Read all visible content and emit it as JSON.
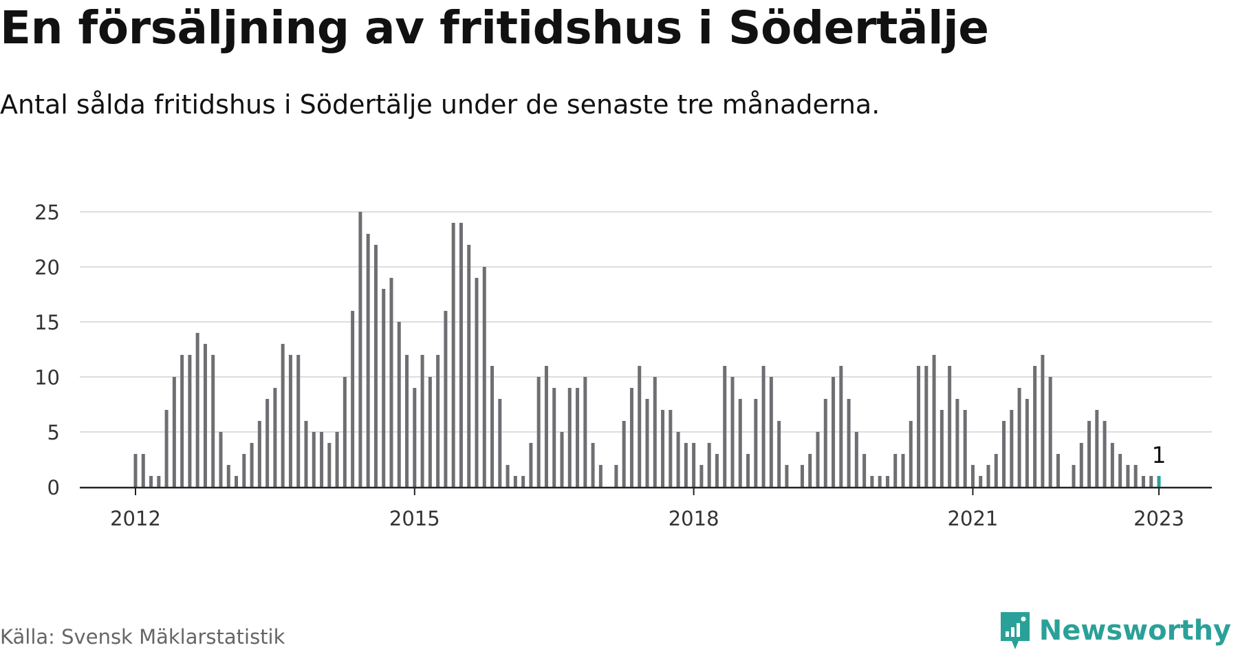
{
  "title": "En försäljning av fritidshus i Södertälje",
  "subtitle": "Antal sålda fritidshus i Södertälje under de senaste tre månaderna.",
  "source": "Källa: Svensk Mäklarstatistik",
  "brand": {
    "name": "Newsworthy",
    "icon": "newsworthy-logo-icon"
  },
  "colors": {
    "bar": "#6e6e73",
    "highlight": "#2aa198",
    "grid": "#dddddd",
    "axis": "#222222"
  },
  "chart_data": {
    "type": "bar",
    "title": "En försäljning av fritidshus i Södertälje",
    "subtitle": "Antal sålda fritidshus i Södertälje under de senaste tre månaderna.",
    "xlabel": "",
    "ylabel": "",
    "ylim": [
      0,
      25
    ],
    "y_ticks": [
      "0",
      "5",
      "10",
      "15",
      "20",
      "25"
    ],
    "x_ticks": [
      {
        "label": "2012",
        "date": "2012-01"
      },
      {
        "label": "2015",
        "date": "2015-01"
      },
      {
        "label": "2018",
        "date": "2018-01"
      },
      {
        "label": "2021",
        "date": "2021-01"
      },
      {
        "label": "2023",
        "date": "2023-01"
      }
    ],
    "grid": true,
    "start_month": "2011-01",
    "series": [
      {
        "values": [
          0,
          0,
          0,
          0,
          0,
          0,
          0,
          0,
          0,
          0,
          0,
          0,
          3,
          3,
          1,
          1,
          7,
          10,
          12,
          12,
          14,
          13,
          12,
          5,
          2,
          1,
          3,
          4,
          6,
          8,
          9,
          13,
          12,
          12,
          6,
          5,
          5,
          4,
          5,
          10,
          16,
          25,
          23,
          22,
          18,
          19,
          15,
          12,
          9,
          12,
          10,
          12,
          16,
          24,
          24,
          22,
          19,
          20,
          11,
          8,
          2,
          1,
          1,
          4,
          10,
          11,
          9,
          5,
          9,
          9,
          10,
          4,
          2,
          0,
          2,
          6,
          9,
          11,
          8,
          10,
          7,
          7,
          5,
          4,
          4,
          2,
          4,
          3,
          11,
          10,
          8,
          3,
          8,
          11,
          10,
          6,
          2,
          0,
          2,
          3,
          5,
          8,
          10,
          11,
          8,
          5,
          3,
          1,
          1,
          1,
          3,
          3,
          6,
          11,
          11,
          12,
          7,
          11,
          8,
          7,
          2,
          1,
          2,
          3,
          6,
          7,
          9,
          8,
          11,
          12,
          10,
          3,
          0,
          2,
          4,
          6,
          7,
          6,
          4,
          3,
          2,
          2,
          1,
          1
        ]
      }
    ],
    "highlight": {
      "date": "2023-01",
      "value": 1,
      "label": "1"
    }
  }
}
